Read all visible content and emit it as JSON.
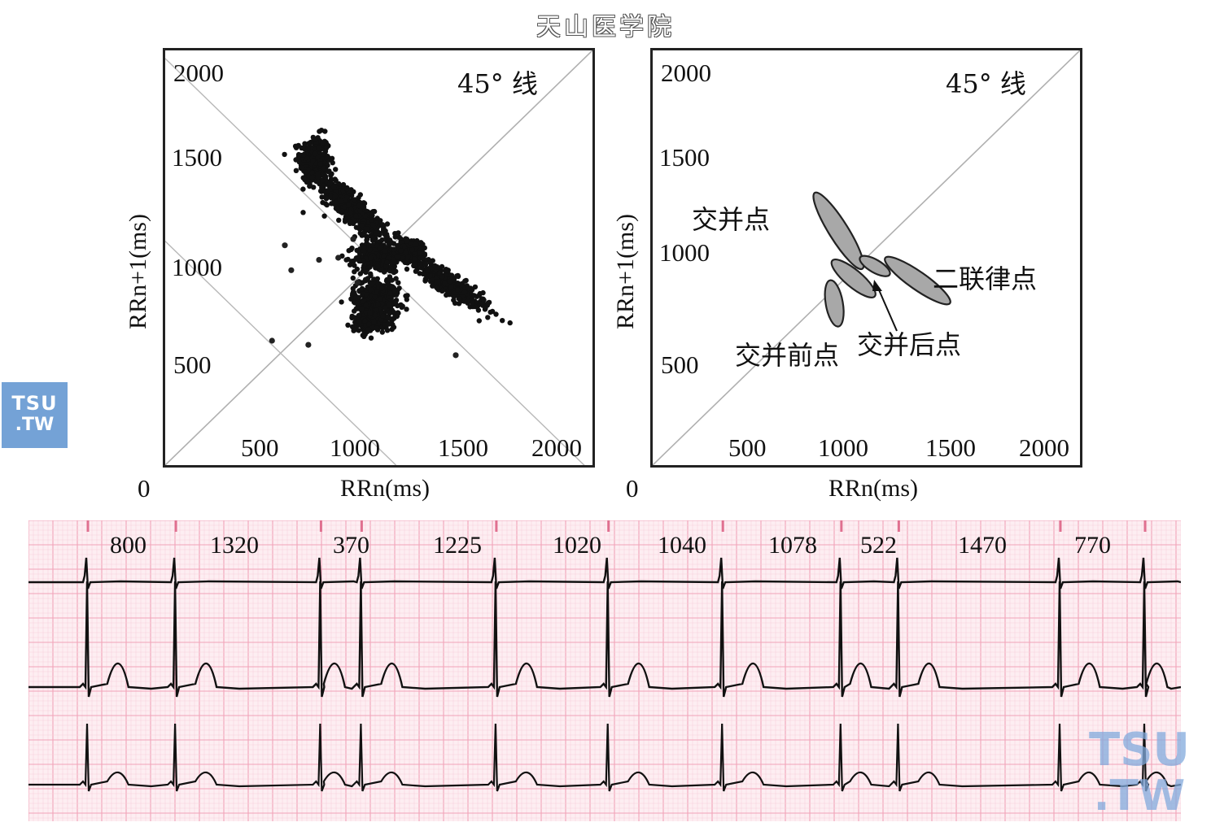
{
  "header": {
    "title": "天山医学院"
  },
  "logo": {
    "line1": "TSU",
    "line2": ".TW"
  },
  "watermark": {
    "line1": "TSU",
    "line2": ".TW"
  },
  "chart_data": [
    {
      "type": "scatter",
      "xlabel": "RRn(ms)",
      "ylabel": "RRn+1(ms)",
      "xlim": [
        0,
        2000
      ],
      "ylim": [
        0,
        2000
      ],
      "origin_label": "0",
      "x_ticks": [
        "500",
        "1000",
        "1500",
        "2000"
      ],
      "y_ticks": [
        "500",
        "1000",
        "1500",
        "2000"
      ],
      "diagonal_label": "45° 线",
      "grid": false,
      "scatter_clusters": [
        {
          "cx": 700,
          "cy": 1470,
          "rx": 70,
          "ry": 120,
          "rot": 0,
          "n": 300
        },
        {
          "cx": 870,
          "cy": 1240,
          "rx": 240,
          "ry": 60,
          "rot": -45,
          "n": 450
        },
        {
          "cx": 1000,
          "cy": 1000,
          "rx": 110,
          "ry": 70,
          "rot": 0,
          "n": 250
        },
        {
          "cx": 1150,
          "cy": 1040,
          "rx": 80,
          "ry": 50,
          "rot": 0,
          "n": 180
        },
        {
          "cx": 1320,
          "cy": 880,
          "rx": 220,
          "ry": 45,
          "rot": -35,
          "n": 400
        },
        {
          "cx": 990,
          "cy": 800,
          "rx": 110,
          "ry": 110,
          "rot": 0,
          "n": 350
        },
        {
          "cx": 960,
          "cy": 700,
          "rx": 90,
          "ry": 60,
          "rot": 0,
          "n": 200
        }
      ],
      "outliers": [
        [
          560,
          1060
        ],
        [
          590,
          940
        ],
        [
          720,
          990
        ],
        [
          810,
          1000
        ],
        [
          880,
          1090
        ],
        [
          500,
          600
        ],
        [
          670,
          580
        ],
        [
          1360,
          530
        ],
        [
          900,
          880
        ]
      ]
    },
    {
      "type": "scatter",
      "xlabel": "RRn(ms)",
      "ylabel": "RRn+1(ms)",
      "xlim": [
        0,
        2000
      ],
      "ylim": [
        0,
        2000
      ],
      "origin_label": "0",
      "x_ticks": [
        "500",
        "1000",
        "1500",
        "2000"
      ],
      "y_ticks": [
        "500",
        "1000",
        "1500",
        "2000"
      ],
      "diagonal_label": "45° 线",
      "grid": false,
      "regions": [
        {
          "name": "交并点",
          "cx": 870,
          "cy": 1130,
          "rx": 210,
          "ry": 45,
          "rot": -58
        },
        {
          "name": "交并前点",
          "cx": 850,
          "cy": 780,
          "rx": 110,
          "ry": 40,
          "rot": -80
        },
        {
          "name": "交并前点",
          "cx": 940,
          "cy": 900,
          "rx": 130,
          "ry": 40,
          "rot": -40
        },
        {
          "name": "交并后点",
          "cx": 1040,
          "cy": 960,
          "rx": 80,
          "ry": 30,
          "rot": -30
        },
        {
          "name": "二联律点",
          "cx": 1240,
          "cy": 890,
          "rx": 185,
          "ry": 42,
          "rot": -35
        }
      ],
      "annotations": [
        {
          "text": "交并点",
          "x": 200,
          "y": 1180
        },
        {
          "text": "交并前点",
          "x": 390,
          "y": 560
        },
        {
          "text": "交并后点",
          "x": 1000,
          "y": 560
        },
        {
          "text": "二联律点",
          "x": 1340,
          "y": 940
        }
      ]
    },
    {
      "type": "line",
      "title": "",
      "rr_intervals_ms": [
        800,
        1320,
        370,
        1225,
        1020,
        1040,
        1078,
        522,
        1470,
        770
      ],
      "grid": true,
      "grid_color": "#f2aabd"
    }
  ]
}
